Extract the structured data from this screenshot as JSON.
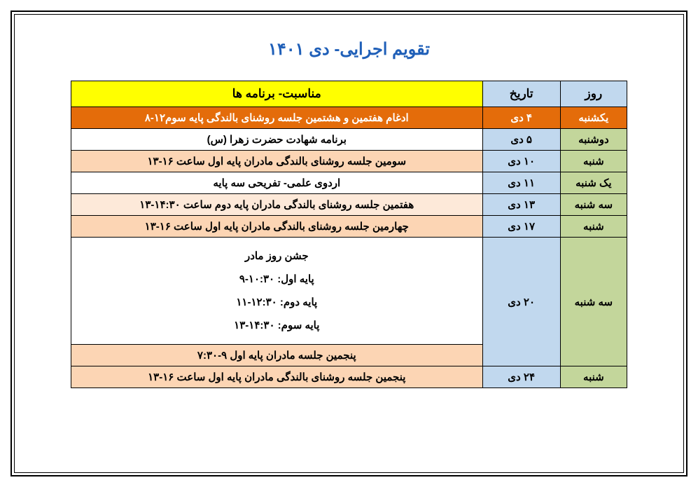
{
  "title": "تقویم اجرایی- دی ۱۴۰۱",
  "table": {
    "columns": [
      "روز",
      "تاریخ",
      "مناسبت- برنامه ها"
    ],
    "header_colors": {
      "day": "#c1d8ee",
      "date": "#c1d8ee",
      "event": "#ffff00"
    },
    "rows": [
      {
        "day": "یکشنبه",
        "date": "۴ دی",
        "event": "ادغام هفتمین و هشتمین جلسه روشنای بالندگی پایه سوم۱۲-۸",
        "day_bg": "#e46c0a",
        "date_bg": "#e46c0a",
        "event_bg": "#e46c0a",
        "event_text": "#ffffff",
        "day_text": "#ffffff",
        "date_text": "#ffffff"
      },
      {
        "day": "دوشنبه",
        "date": "۵ دی",
        "event": "برنامه شهادت حضرت زهرا (س)",
        "day_bg": "#c3d69b",
        "date_bg": "#c1d8ee",
        "event_bg": "#ffffff"
      },
      {
        "day": "شنبه",
        "date": "۱۰ دی",
        "event": "سومین جلسه روشنای بالندگی مادران پایه اول ساعت ۱۶-۱۳",
        "day_bg": "#c3d69b",
        "date_bg": "#c1d8ee",
        "event_bg": "#fcd5b4"
      },
      {
        "day": "یک شنبه",
        "date": "۱۱ دی",
        "event": "اردوی علمی- تفریحی سه پایه",
        "day_bg": "#c3d69b",
        "date_bg": "#c1d8ee",
        "event_bg": "#ffffff"
      },
      {
        "day": "سه شنبه",
        "date": "۱۳ دی",
        "event": "هفتمین جلسه روشنای بالندگی مادران پایه دوم ساعت ۱۴:۳۰-۱۳",
        "day_bg": "#c3d69b",
        "date_bg": "#c1d8ee",
        "event_bg": "#fde9d9"
      },
      {
        "day": "شنبه",
        "date": "۱۷ دی",
        "event": "چهارمین جلسه روشنای بالندگی مادران پایه اول ساعت ۱۶-۱۳",
        "day_bg": "#c3d69b",
        "date_bg": "#c1d8ee",
        "event_bg": "#fcd5b4"
      },
      {
        "day": "سه شنبه",
        "day_rowspan": 2,
        "date": "۲۰ دی",
        "date_rowspan": 2,
        "event_lines": [
          "جشن روز مادر",
          "پایه اول: ۱۰:۳۰-۹",
          "پایه دوم: ۱۲:۳۰-۱۱",
          "پایه سوم: ۱۴:۳۰-۱۳"
        ],
        "day_bg": "#c3d69b",
        "date_bg": "#c1d8ee",
        "event_bg": "#ffffff"
      },
      {
        "skip_day": true,
        "skip_date": true,
        "event": "پنجمین جلسه مادران پایه اول ۹-۷:۳۰",
        "event_bg": "#fcd5b4"
      },
      {
        "day": "شنبه",
        "date": "۲۴ دی",
        "event": "پنجمین جلسه روشنای بالندگی مادران پایه اول ساعت ۱۶-۱۳",
        "day_bg": "#c3d69b",
        "date_bg": "#c1d8ee",
        "event_bg": "#fcd5b4"
      }
    ]
  }
}
